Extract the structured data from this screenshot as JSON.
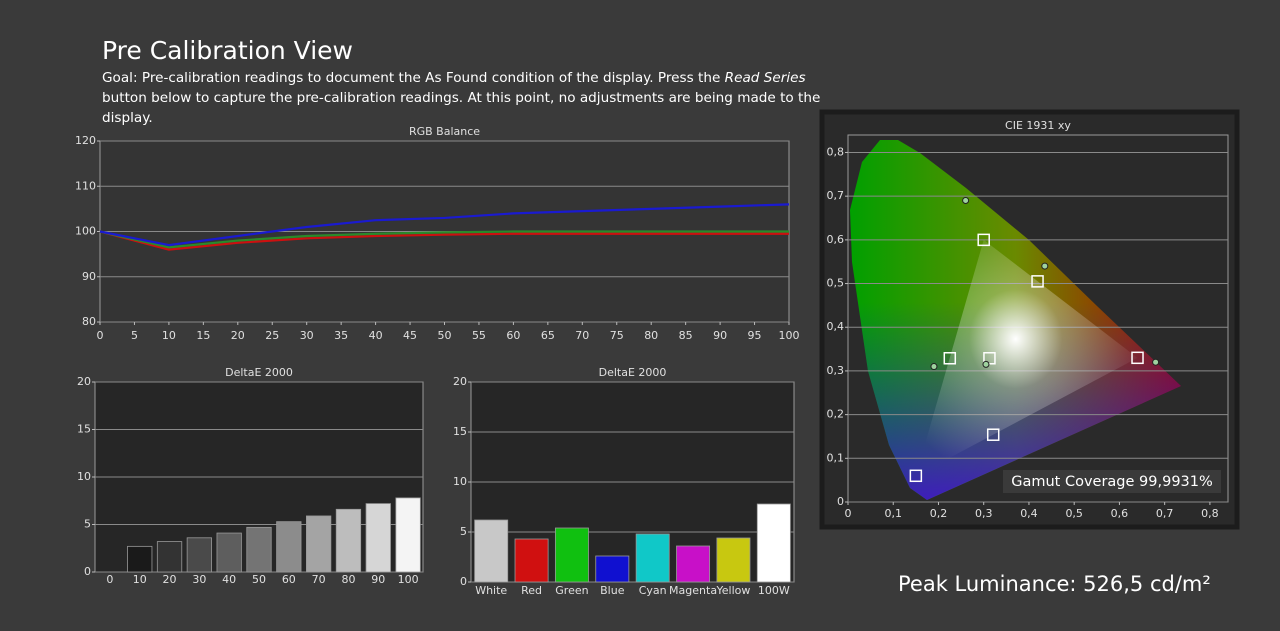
{
  "header": {
    "title": "Pre Calibration View",
    "goal_before": "Goal: Pre-calibration readings to document the As Found condition of the display. Press the ",
    "goal_emphasis": "Read Series",
    "goal_after": " button below to capture the pre-calibration readings. At this point, no adjustments are being made to the display.",
    "peak_luminance": "Peak Luminance: 526,5 cd/m²"
  },
  "chart_data": [
    {
      "type": "line",
      "title": "RGB Balance",
      "x": [
        0,
        10,
        20,
        30,
        40,
        50,
        60,
        70,
        80,
        90,
        100
      ],
      "series": [
        {
          "color": "#cc1010",
          "values": [
            100,
            96,
            97.5,
            98.5,
            99,
            99.3,
            99.5,
            99.5,
            99.5,
            99.5,
            99.5
          ]
        },
        {
          "color": "#2a8a2a",
          "values": [
            100,
            96.5,
            98,
            99,
            99.5,
            99.8,
            100,
            100,
            100,
            100,
            100
          ]
        },
        {
          "color": "#1a1ad0",
          "values": [
            100,
            97,
            99,
            101,
            102.5,
            103,
            104,
            104.5,
            105,
            105.5,
            106
          ]
        }
      ],
      "xlim": [
        0,
        100
      ],
      "xticks": [
        0,
        5,
        10,
        15,
        20,
        25,
        30,
        35,
        40,
        45,
        50,
        55,
        60,
        65,
        70,
        75,
        80,
        85,
        90,
        95,
        100
      ],
      "ylim": [
        80,
        120
      ],
      "yticks": [
        80,
        90,
        100,
        110,
        120
      ],
      "grid": true
    },
    {
      "type": "bar",
      "title": "DeltaE 2000",
      "categories": [
        "0",
        "10",
        "20",
        "30",
        "40",
        "50",
        "60",
        "70",
        "80",
        "90",
        "100"
      ],
      "values": [
        null,
        2.7,
        3.2,
        3.6,
        4.1,
        4.7,
        5.3,
        5.9,
        6.6,
        7.2,
        7.8
      ],
      "colors": [
        "#000000",
        "#1a1a1a",
        "#333333",
        "#4a4a4a",
        "#5e5e5e",
        "#747474",
        "#8c8c8c",
        "#a4a4a4",
        "#bdbdbd",
        "#d6d6d6",
        "#f4f4f4"
      ],
      "ylim": [
        0,
        20
      ],
      "yticks": [
        0,
        5,
        10,
        15,
        20
      ],
      "grid": true
    },
    {
      "type": "bar",
      "title": "DeltaE 2000",
      "categories": [
        "White",
        "Red",
        "Green",
        "Blue",
        "Cyan",
        "Magenta",
        "Yellow",
        "100W"
      ],
      "values": [
        6.2,
        4.3,
        5.4,
        2.6,
        4.8,
        3.6,
        4.4,
        7.8
      ],
      "colors": [
        "#c8c8c8",
        "#d01010",
        "#10c010",
        "#1010d0",
        "#10c8c8",
        "#c810c8",
        "#c8c810",
        "#ffffff"
      ],
      "ylim": [
        0,
        20
      ],
      "yticks": [
        0,
        5,
        10,
        15,
        20
      ],
      "grid": true
    },
    {
      "type": "scatter",
      "title": "CIE 1931 xy",
      "annotation": "Gamut Coverage 99,9931%",
      "series": [
        {
          "marker": "square",
          "color": "#ffffff",
          "x": [
            0.64,
            0.3,
            0.15,
            0.3127,
            0.225,
            0.321,
            0.419
          ],
          "values": [
            0.33,
            0.6,
            0.06,
            0.329,
            0.329,
            0.154,
            0.505
          ]
        },
        {
          "marker": "circle",
          "color": "#9fd29f",
          "x": [
            0.68,
            0.26,
            0.305,
            0.19,
            0.435
          ],
          "values": [
            0.32,
            0.69,
            0.315,
            0.31,
            0.54
          ]
        }
      ],
      "xlim": [
        0,
        0.84
      ],
      "xticks": [
        0,
        {
          "value": 0.1,
          "label": "0,1"
        },
        {
          "value": 0.2,
          "label": "0,2"
        },
        {
          "value": 0.3,
          "label": "0,3"
        },
        {
          "value": 0.4,
          "label": "0,4"
        },
        {
          "value": 0.5,
          "label": "0,5"
        },
        {
          "value": 0.6,
          "label": "0,6"
        },
        {
          "value": 0.7,
          "label": "0,7"
        },
        {
          "value": 0.8,
          "label": "0,8"
        }
      ],
      "ylim": [
        0,
        0.84
      ],
      "yticks": [
        0,
        {
          "value": 0.1,
          "label": "0,1"
        },
        {
          "value": 0.2,
          "label": "0,2"
        },
        {
          "value": 0.3,
          "label": "0,3"
        },
        {
          "value": 0.4,
          "label": "0,4"
        },
        {
          "value": 0.5,
          "label": "0,5"
        },
        {
          "value": 0.6,
          "label": "0,6"
        },
        {
          "value": 0.7,
          "label": "0,7"
        },
        {
          "value": 0.8,
          "label": "0,8"
        }
      ],
      "grid": true
    }
  ]
}
